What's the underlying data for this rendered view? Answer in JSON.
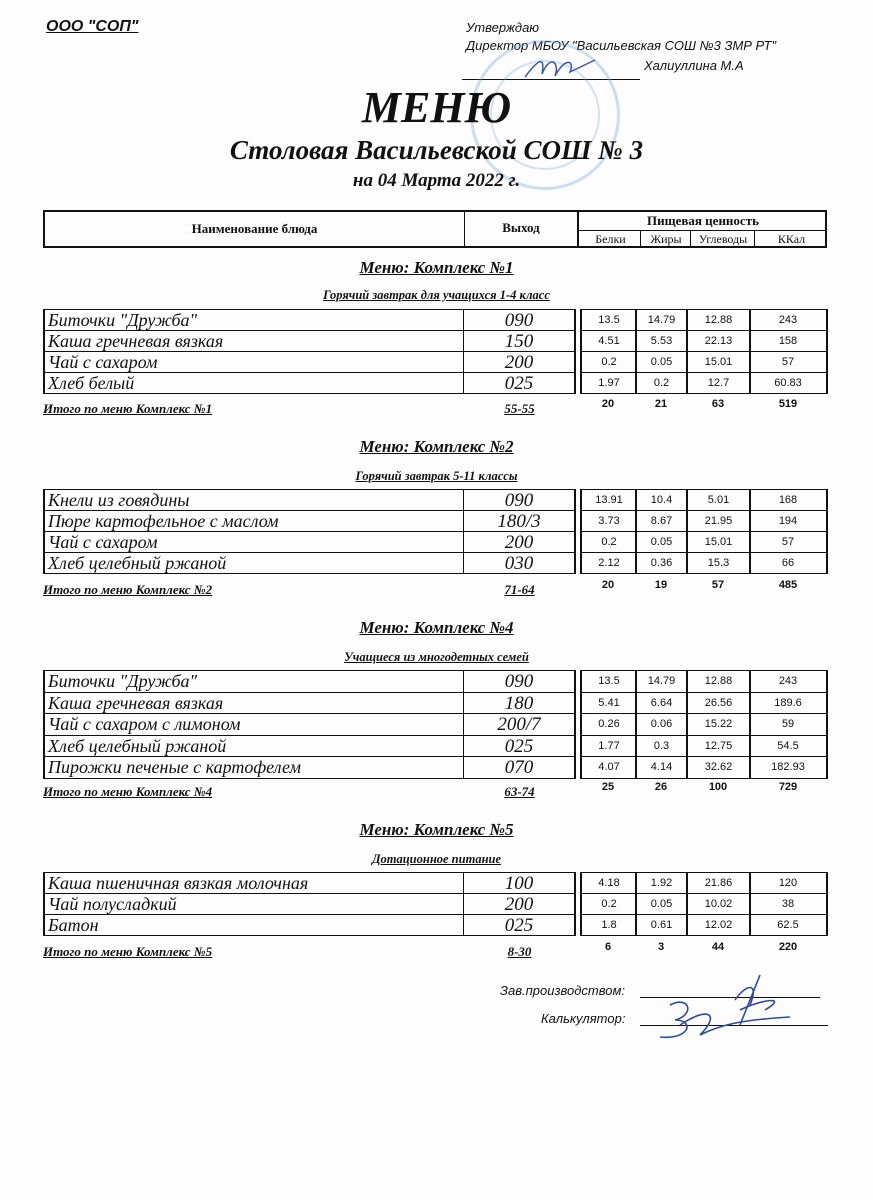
{
  "header": {
    "org": "ООО \"СОП\"",
    "approve": "Утверждаю",
    "director": "Директор МБОУ \"Васильевская СОШ  №3 ЗМР РТ\"",
    "director_name": "Халиуллина М.А",
    "title": "МЕНЮ",
    "subtitle": "Столовая Васильевской  СОШ  № 3",
    "date": "на 04 Марта 2022 г."
  },
  "table_header": {
    "name": "Наименование блюда",
    "output": "Выход",
    "nutrition": "Пищевая ценность",
    "columns": [
      "Белки",
      "Жиры",
      "Углеводы",
      "ККал"
    ]
  },
  "sections": [
    {
      "title": "Меню: Комплекс №1",
      "subtitle": "Горячий завтрак для учащихся 1-4 класс",
      "rows": [
        {
          "name": "Биточки   \"Дружба\"",
          "output": "090",
          "values": [
            "13.5",
            "14.79",
            "12.88",
            "243"
          ]
        },
        {
          "name": "Каша гречневая вязкая",
          "output": "150",
          "values": [
            "4.51",
            "5.53",
            "22.13",
            "158"
          ]
        },
        {
          "name": "Чай с сахаром",
          "output": "200",
          "values": [
            "0.2",
            "0.05",
            "15.01",
            "57"
          ]
        },
        {
          "name": "Хлеб белый",
          "output": "025",
          "values": [
            "1.97",
            "0.2",
            "12.7",
            "60.83"
          ]
        }
      ],
      "total": {
        "label": "Итого по меню Комплекс №1",
        "output": "55-55",
        "values": [
          "20",
          "21",
          "63",
          "519"
        ]
      }
    },
    {
      "title": "Меню: Комплекс №2",
      "subtitle": "Горячий завтрак 5-11 классы",
      "rows": [
        {
          "name": "Кнели из говядины",
          "output": "090",
          "values": [
            "13.91",
            "10.4",
            "5.01",
            "168"
          ]
        },
        {
          "name": "Пюре картофельное с маслом",
          "output": "180/3",
          "values": [
            "3.73",
            "8.67",
            "21.95",
            "194"
          ]
        },
        {
          "name": "Чай с сахаром",
          "output": "200",
          "values": [
            "0.2",
            "0.05",
            "15.01",
            "57"
          ]
        },
        {
          "name": "Хлеб  целебный ржаной",
          "output": "030",
          "values": [
            "2.12",
            "0.36",
            "15.3",
            "66"
          ]
        }
      ],
      "total": {
        "label": "Итого по меню Комплекс №2",
        "output": "71-64",
        "values": [
          "20",
          "19",
          "57",
          "485"
        ]
      }
    },
    {
      "title": "Меню: Комплекс №4",
      "subtitle": "Учащиеся из многодетных семей",
      "rows": [
        {
          "name": "Биточки   \"Дружба\"",
          "output": "090",
          "values": [
            "13.5",
            "14.79",
            "12.88",
            "243"
          ]
        },
        {
          "name": "Каша гречневая вязкая",
          "output": "180",
          "values": [
            "5.41",
            "6.64",
            "26.56",
            "189.6"
          ]
        },
        {
          "name": "Чай с сахаром с лимоном",
          "output": "200/7",
          "values": [
            "0.26",
            "0.06",
            "15.22",
            "59"
          ]
        },
        {
          "name": "Хлеб  целебный ржаной",
          "output": "025",
          "values": [
            "1.77",
            "0.3",
            "12.75",
            "54.5"
          ]
        },
        {
          "name": "Пирожки печеные с картофелем",
          "output": "070",
          "values": [
            "4.07",
            "4.14",
            "32.62",
            "182.93"
          ]
        }
      ],
      "total": {
        "label": "Итого по меню Комплекс №4",
        "output": "63-74",
        "values": [
          "25",
          "26",
          "100",
          "729"
        ]
      }
    },
    {
      "title": "Меню: Комплекс №5",
      "subtitle": "Дотационное питание",
      "rows": [
        {
          "name": "Каша пшеничная вязкая молочная",
          "output": "100",
          "values": [
            "4.18",
            "1.92",
            "21.86",
            "120"
          ]
        },
        {
          "name": "Чай полусладкий",
          "output": "200",
          "values": [
            "0.2",
            "0.05",
            "10.02",
            "38"
          ]
        },
        {
          "name": "Батон",
          "output": "025",
          "values": [
            "1.8",
            "0.61",
            "12.02",
            "62.5"
          ]
        }
      ],
      "total": {
        "label": "Итого по меню Комплекс №5",
        "output": "8-30",
        "values": [
          "6",
          "3",
          "44",
          "220"
        ]
      }
    }
  ],
  "footer": {
    "production_head": "Зав.производством:",
    "calculator": "Калькулятор:"
  }
}
